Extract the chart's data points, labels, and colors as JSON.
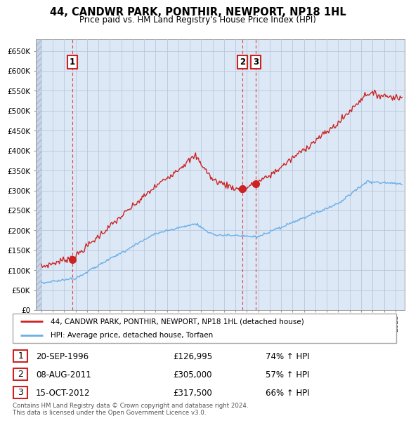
{
  "title": "44, CANDWR PARK, PONTHIR, NEWPORT, NP18 1HL",
  "subtitle": "Price paid vs. HM Land Registry's House Price Index (HPI)",
  "ylim": [
    0,
    680000
  ],
  "yticks": [
    0,
    50000,
    100000,
    150000,
    200000,
    250000,
    300000,
    350000,
    400000,
    450000,
    500000,
    550000,
    600000,
    650000
  ],
  "ytick_labels": [
    "£0",
    "£50K",
    "£100K",
    "£150K",
    "£200K",
    "£250K",
    "£300K",
    "£350K",
    "£400K",
    "£450K",
    "£500K",
    "£550K",
    "£600K",
    "£650K"
  ],
  "hpi_color": "#6aaee8",
  "price_color": "#cc2222",
  "dashed_line_color": "#dd4444",
  "chart_bg_color": "#dce8f5",
  "hatch_color": "#c8d4e8",
  "grid_color": "#b8c8dc",
  "sale_points": [
    {
      "date": 1996.72,
      "price": 126995,
      "label": "1"
    },
    {
      "date": 2011.59,
      "price": 305000,
      "label": "2"
    },
    {
      "date": 2012.79,
      "price": 317500,
      "label": "3"
    }
  ],
  "legend_line1": "44, CANDWR PARK, PONTHIR, NEWPORT, NP18 1HL (detached house)",
  "legend_line2": "HPI: Average price, detached house, Torfaen",
  "table_rows": [
    {
      "num": "1",
      "date": "20-SEP-1996",
      "price": "£126,995",
      "hpi": "74% ↑ HPI"
    },
    {
      "num": "2",
      "date": "08-AUG-2011",
      "price": "£305,000",
      "hpi": "57% ↑ HPI"
    },
    {
      "num": "3",
      "date": "15-OCT-2012",
      "price": "£317,500",
      "hpi": "66% ↑ HPI"
    }
  ],
  "footnote": "Contains HM Land Registry data © Crown copyright and database right 2024.\nThis data is licensed under the Open Government Licence v3.0.",
  "xlim_start": 1993.5,
  "xlim_end": 2025.8
}
